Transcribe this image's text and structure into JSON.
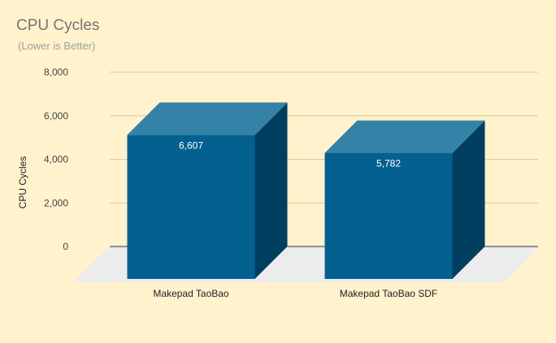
{
  "chart_data": {
    "type": "bar",
    "title": "CPU Cycles",
    "subtitle": "(Lower is Better)",
    "xlabel": "",
    "ylabel": "CPU Cycles",
    "categories": [
      "Makepad TaoBao",
      "Makepad TaoBao SDF"
    ],
    "series": [
      {
        "values": [
          6607,
          5782
        ]
      }
    ],
    "data_labels": [
      "6,607",
      "5,782"
    ],
    "ylim": [
      0,
      8000
    ],
    "yticks": [
      0,
      2000,
      4000,
      6000,
      8000
    ],
    "ytick_labels": [
      "0",
      "2,000",
      "4,000",
      "6,000",
      "8,000"
    ],
    "grid": true,
    "legend": "none",
    "style": "3d",
    "colors": {
      "background": "#fff2cc",
      "bar_front": "#03608f",
      "bar_top": "#3482a8",
      "bar_side": "#003f5f",
      "floor": "#ececec",
      "gridline": "#d9c9a0",
      "baseline": "#333333"
    }
  }
}
